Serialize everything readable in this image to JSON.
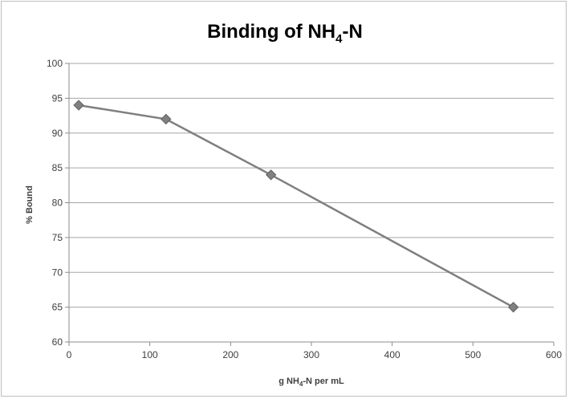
{
  "chart_data": {
    "type": "scatter",
    "title": {
      "main": "Binding of NH",
      "sub": "4",
      "tail": "-N"
    },
    "xlabel": {
      "pre": "g NH",
      "sub": "4",
      "post": "-N per mL"
    },
    "ylabel": "% Bound",
    "xlim": [
      0,
      600
    ],
    "ylim": [
      60,
      100
    ],
    "x_ticks": [
      "0",
      "100",
      "200",
      "300",
      "400",
      "500",
      "600"
    ],
    "y_ticks": [
      "60",
      "65",
      "70",
      "75",
      "80",
      "85",
      "90",
      "95",
      "100"
    ],
    "grid": true,
    "legend": "none",
    "series": [
      {
        "x": [
          12,
          120,
          250,
          550
        ],
        "y": [
          94,
          92,
          84,
          65
        ],
        "color": "#7f7f7f",
        "marker": "diamond"
      }
    ]
  }
}
